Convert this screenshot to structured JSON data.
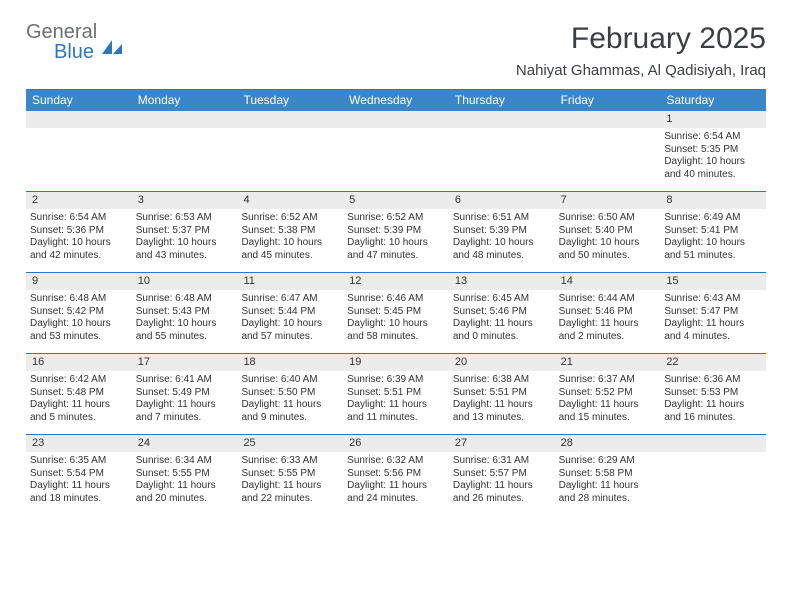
{
  "brand": {
    "word1": "General",
    "word2": "Blue"
  },
  "title": "February 2025",
  "location": "Nahiyat Ghammas, Al Qadisiyah, Iraq",
  "colors": {
    "header_bg": "#3a86c8",
    "border": "#2d78bc",
    "daynum_bg": "#ececec",
    "text": "#333333",
    "logo_gray": "#6b7074",
    "logo_blue": "#2d78bc"
  },
  "day_names": [
    "Sunday",
    "Monday",
    "Tuesday",
    "Wednesday",
    "Thursday",
    "Friday",
    "Saturday"
  ],
  "weeks": [
    [
      {
        "n": "",
        "lines": []
      },
      {
        "n": "",
        "lines": []
      },
      {
        "n": "",
        "lines": []
      },
      {
        "n": "",
        "lines": []
      },
      {
        "n": "",
        "lines": []
      },
      {
        "n": "",
        "lines": []
      },
      {
        "n": "1",
        "lines": [
          "Sunrise: 6:54 AM",
          "Sunset: 5:35 PM",
          "Daylight: 10 hours and 40 minutes."
        ]
      }
    ],
    [
      {
        "n": "2",
        "lines": [
          "Sunrise: 6:54 AM",
          "Sunset: 5:36 PM",
          "Daylight: 10 hours and 42 minutes."
        ]
      },
      {
        "n": "3",
        "lines": [
          "Sunrise: 6:53 AM",
          "Sunset: 5:37 PM",
          "Daylight: 10 hours and 43 minutes."
        ]
      },
      {
        "n": "4",
        "lines": [
          "Sunrise: 6:52 AM",
          "Sunset: 5:38 PM",
          "Daylight: 10 hours and 45 minutes."
        ]
      },
      {
        "n": "5",
        "lines": [
          "Sunrise: 6:52 AM",
          "Sunset: 5:39 PM",
          "Daylight: 10 hours and 47 minutes."
        ]
      },
      {
        "n": "6",
        "lines": [
          "Sunrise: 6:51 AM",
          "Sunset: 5:39 PM",
          "Daylight: 10 hours and 48 minutes."
        ]
      },
      {
        "n": "7",
        "lines": [
          "Sunrise: 6:50 AM",
          "Sunset: 5:40 PM",
          "Daylight: 10 hours and 50 minutes."
        ]
      },
      {
        "n": "8",
        "lines": [
          "Sunrise: 6:49 AM",
          "Sunset: 5:41 PM",
          "Daylight: 10 hours and 51 minutes."
        ]
      }
    ],
    [
      {
        "n": "9",
        "lines": [
          "Sunrise: 6:48 AM",
          "Sunset: 5:42 PM",
          "Daylight: 10 hours and 53 minutes."
        ]
      },
      {
        "n": "10",
        "lines": [
          "Sunrise: 6:48 AM",
          "Sunset: 5:43 PM",
          "Daylight: 10 hours and 55 minutes."
        ]
      },
      {
        "n": "11",
        "lines": [
          "Sunrise: 6:47 AM",
          "Sunset: 5:44 PM",
          "Daylight: 10 hours and 57 minutes."
        ]
      },
      {
        "n": "12",
        "lines": [
          "Sunrise: 6:46 AM",
          "Sunset: 5:45 PM",
          "Daylight: 10 hours and 58 minutes."
        ]
      },
      {
        "n": "13",
        "lines": [
          "Sunrise: 6:45 AM",
          "Sunset: 5:46 PM",
          "Daylight: 11 hours and 0 minutes."
        ]
      },
      {
        "n": "14",
        "lines": [
          "Sunrise: 6:44 AM",
          "Sunset: 5:46 PM",
          "Daylight: 11 hours and 2 minutes."
        ]
      },
      {
        "n": "15",
        "lines": [
          "Sunrise: 6:43 AM",
          "Sunset: 5:47 PM",
          "Daylight: 11 hours and 4 minutes."
        ]
      }
    ],
    [
      {
        "n": "16",
        "lines": [
          "Sunrise: 6:42 AM",
          "Sunset: 5:48 PM",
          "Daylight: 11 hours and 5 minutes."
        ]
      },
      {
        "n": "17",
        "lines": [
          "Sunrise: 6:41 AM",
          "Sunset: 5:49 PM",
          "Daylight: 11 hours and 7 minutes."
        ]
      },
      {
        "n": "18",
        "lines": [
          "Sunrise: 6:40 AM",
          "Sunset: 5:50 PM",
          "Daylight: 11 hours and 9 minutes."
        ]
      },
      {
        "n": "19",
        "lines": [
          "Sunrise: 6:39 AM",
          "Sunset: 5:51 PM",
          "Daylight: 11 hours and 11 minutes."
        ]
      },
      {
        "n": "20",
        "lines": [
          "Sunrise: 6:38 AM",
          "Sunset: 5:51 PM",
          "Daylight: 11 hours and 13 minutes."
        ]
      },
      {
        "n": "21",
        "lines": [
          "Sunrise: 6:37 AM",
          "Sunset: 5:52 PM",
          "Daylight: 11 hours and 15 minutes."
        ]
      },
      {
        "n": "22",
        "lines": [
          "Sunrise: 6:36 AM",
          "Sunset: 5:53 PM",
          "Daylight: 11 hours and 16 minutes."
        ]
      }
    ],
    [
      {
        "n": "23",
        "lines": [
          "Sunrise: 6:35 AM",
          "Sunset: 5:54 PM",
          "Daylight: 11 hours and 18 minutes."
        ]
      },
      {
        "n": "24",
        "lines": [
          "Sunrise: 6:34 AM",
          "Sunset: 5:55 PM",
          "Daylight: 11 hours and 20 minutes."
        ]
      },
      {
        "n": "25",
        "lines": [
          "Sunrise: 6:33 AM",
          "Sunset: 5:55 PM",
          "Daylight: 11 hours and 22 minutes."
        ]
      },
      {
        "n": "26",
        "lines": [
          "Sunrise: 6:32 AM",
          "Sunset: 5:56 PM",
          "Daylight: 11 hours and 24 minutes."
        ]
      },
      {
        "n": "27",
        "lines": [
          "Sunrise: 6:31 AM",
          "Sunset: 5:57 PM",
          "Daylight: 11 hours and 26 minutes."
        ]
      },
      {
        "n": "28",
        "lines": [
          "Sunrise: 6:29 AM",
          "Sunset: 5:58 PM",
          "Daylight: 11 hours and 28 minutes."
        ]
      },
      {
        "n": "",
        "lines": []
      }
    ]
  ]
}
